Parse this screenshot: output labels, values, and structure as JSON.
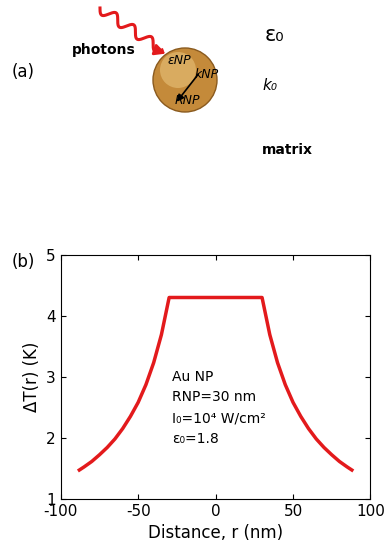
{
  "panel_labels": [
    "(a)",
    "(b)"
  ],
  "diagram": {
    "photons": "photons",
    "eps_matrix": "ε₀",
    "eps_np": "εNP",
    "k_np": "kNP",
    "r_np": "RNP",
    "k_matrix": "k₀",
    "matrix": "matrix"
  },
  "chart_data": {
    "type": "line",
    "x": [
      -88,
      -85,
      -80,
      -75,
      -70,
      -65,
      -60,
      -55,
      -50,
      -45,
      -40,
      -35,
      -30,
      30,
      35,
      40,
      45,
      50,
      55,
      60,
      65,
      70,
      75,
      80,
      85,
      88
    ],
    "series": [
      {
        "name": "Au NP",
        "color": "#e31a1c",
        "values": [
          1.47,
          1.52,
          1.61,
          1.72,
          1.84,
          1.98,
          2.15,
          2.35,
          2.58,
          2.87,
          3.23,
          3.69,
          4.3,
          4.3,
          3.69,
          3.23,
          2.87,
          2.58,
          2.35,
          2.15,
          1.98,
          1.84,
          1.72,
          1.61,
          1.52,
          1.47
        ]
      }
    ],
    "x_label": "Distance, r (nm)",
    "y_label": "ΔT(r) (K)",
    "xlim": [
      -100,
      100
    ],
    "xticks": [
      -100,
      -50,
      0,
      50,
      100
    ],
    "ylim": [
      1,
      5
    ],
    "yticks": [
      1,
      2,
      3,
      4,
      5
    ],
    "annotations": [
      "Au NP",
      "RNP=30 nm",
      "I₀=10⁴ W/cm²",
      "ε₀=1.8"
    ]
  }
}
